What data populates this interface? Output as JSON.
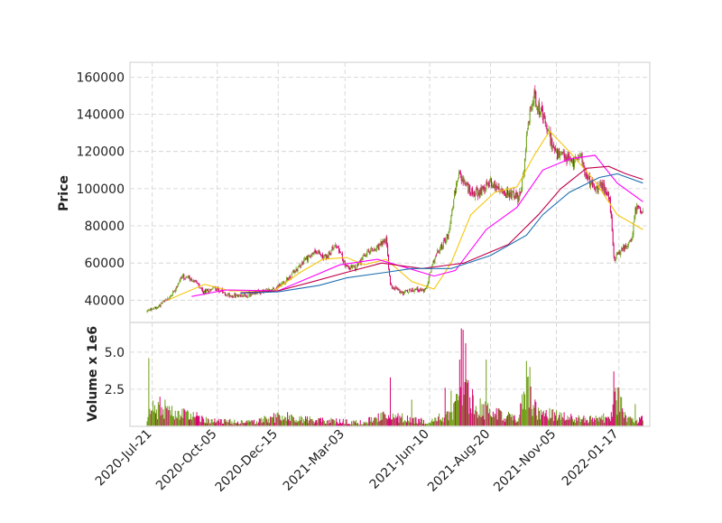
{
  "chart_data": {
    "type": "candlestick",
    "panels": {
      "price": {
        "ylabel": "Price",
        "ylim": [
          28000,
          168000
        ],
        "yticks": [
          40000,
          60000,
          80000,
          100000,
          120000,
          140000,
          160000
        ],
        "ytick_labels": [
          "40000",
          "60000",
          "80000",
          "100000",
          "120000",
          "140000",
          "160000"
        ]
      },
      "volume": {
        "ylabel": "Volume x 1e6",
        "ylim": [
          0,
          7.0
        ],
        "yticks": [
          2.5,
          5.0
        ],
        "ytick_labels": [
          "2.5",
          "5.0"
        ]
      }
    },
    "x": {
      "start": "2020-07-15",
      "end": "2022-02-14",
      "xlim": [
        "2020-06-25",
        "2022-02-22"
      ],
      "ticks": [
        "2020-07-21",
        "2020-10-05",
        "2020-12-15",
        "2021-03-03",
        "2021-06-10",
        "2021-08-20",
        "2021-11-05",
        "2022-01-17"
      ],
      "tick_labels": [
        "2020-Jul-21",
        "2020-Oct-05",
        "2020-Dec-15",
        "2021-Mar-03",
        "2021-Jun-10",
        "2021-Aug-20",
        "2021-Nov-05",
        "2022-01-17"
      ]
    },
    "close_keypoints": [
      [
        "2020-07-15",
        34000
      ],
      [
        "2020-07-28",
        37000
      ],
      [
        "2020-08-10",
        41000
      ],
      [
        "2020-08-25",
        53000
      ],
      [
        "2020-09-08",
        51000
      ],
      [
        "2020-09-18",
        44000
      ],
      [
        "2020-10-02",
        47000
      ],
      [
        "2020-10-15",
        43000
      ],
      [
        "2020-11-01",
        42000
      ],
      [
        "2020-11-20",
        44000
      ],
      [
        "2020-12-10",
        46000
      ],
      [
        "2020-12-28",
        52000
      ],
      [
        "2021-01-15",
        62000
      ],
      [
        "2021-01-28",
        66000
      ],
      [
        "2021-02-10",
        63000
      ],
      [
        "2021-02-20",
        70000
      ],
      [
        "2021-03-05",
        58000
      ],
      [
        "2021-03-15",
        57000
      ],
      [
        "2021-03-28",
        65000
      ],
      [
        "2021-04-10",
        68000
      ],
      [
        "2021-04-20",
        73000
      ],
      [
        "2021-04-25",
        48000
      ],
      [
        "2021-05-10",
        44000
      ],
      [
        "2021-05-25",
        46000
      ],
      [
        "2021-06-05",
        45000
      ],
      [
        "2021-06-15",
        62000
      ],
      [
        "2021-06-25",
        70000
      ],
      [
        "2021-07-02",
        76000
      ],
      [
        "2021-07-08",
        95000
      ],
      [
        "2021-07-15",
        108000
      ],
      [
        "2021-07-25",
        100000
      ],
      [
        "2021-08-05",
        97000
      ],
      [
        "2021-08-20",
        104000
      ],
      [
        "2021-09-01",
        98000
      ],
      [
        "2021-09-12",
        97000
      ],
      [
        "2021-09-22",
        95000
      ],
      [
        "2021-09-28",
        108000
      ],
      [
        "2021-10-01",
        132000
      ],
      [
        "2021-10-10",
        150000
      ],
      [
        "2021-10-20",
        138000
      ],
      [
        "2021-10-28",
        128000
      ],
      [
        "2021-11-05",
        118000
      ],
      [
        "2021-11-18",
        116000
      ],
      [
        "2021-11-25",
        114000
      ],
      [
        "2021-12-02",
        120000
      ],
      [
        "2021-12-10",
        106000
      ],
      [
        "2021-12-20",
        100000
      ],
      [
        "2021-12-30",
        101000
      ],
      [
        "2022-01-06",
        96000
      ],
      [
        "2022-01-11",
        62000
      ],
      [
        "2022-01-20",
        67000
      ],
      [
        "2022-01-28",
        70000
      ],
      [
        "2022-02-01",
        73000
      ],
      [
        "2022-02-05",
        90000
      ],
      [
        "2022-02-14",
        89000
      ]
    ],
    "moving_averages": [
      {
        "color": "#f4c70a",
        "points": [
          [
            "2020-08-08",
            40000
          ],
          [
            "2020-09-20",
            48500
          ],
          [
            "2020-10-20",
            45000
          ],
          [
            "2020-12-10",
            45000
          ],
          [
            "2021-01-10",
            55000
          ],
          [
            "2021-02-05",
            62000
          ],
          [
            "2021-03-05",
            63000
          ],
          [
            "2021-03-25",
            59000
          ],
          [
            "2021-04-20",
            62000
          ],
          [
            "2021-05-20",
            50000
          ],
          [
            "2021-06-15",
            46000
          ],
          [
            "2021-07-05",
            60000
          ],
          [
            "2021-07-28",
            86000
          ],
          [
            "2021-08-25",
            98000
          ],
          [
            "2021-09-20",
            101000
          ],
          [
            "2021-10-10",
            118000
          ],
          [
            "2021-10-28",
            131000
          ],
          [
            "2021-11-20",
            120000
          ],
          [
            "2021-12-20",
            104000
          ],
          [
            "2022-01-15",
            86000
          ],
          [
            "2022-02-14",
            78000
          ]
        ]
      },
      {
        "color": "#ff00ff",
        "points": [
          [
            "2020-09-05",
            42000
          ],
          [
            "2020-10-15",
            45500
          ],
          [
            "2020-12-15",
            45000
          ],
          [
            "2021-01-20",
            52000
          ],
          [
            "2021-02-25",
            59000
          ],
          [
            "2021-04-10",
            62000
          ],
          [
            "2021-05-10",
            58000
          ],
          [
            "2021-06-15",
            53000
          ],
          [
            "2021-07-10",
            56000
          ],
          [
            "2021-08-15",
            78000
          ],
          [
            "2021-09-20",
            90000
          ],
          [
            "2021-10-20",
            110000
          ],
          [
            "2021-11-20",
            116000
          ],
          [
            "2021-12-20",
            118000
          ],
          [
            "2022-01-15",
            103000
          ],
          [
            "2022-02-14",
            93000
          ]
        ]
      },
      {
        "color": "#c1004a",
        "points": [
          [
            "2020-11-01",
            44000
          ],
          [
            "2020-12-15",
            45000
          ],
          [
            "2021-01-25",
            50000
          ],
          [
            "2021-03-05",
            55000
          ],
          [
            "2021-04-15",
            60000
          ],
          [
            "2021-06-01",
            57000
          ],
          [
            "2021-07-20",
            60000
          ],
          [
            "2021-09-10",
            70000
          ],
          [
            "2021-10-15",
            86000
          ],
          [
            "2021-11-10",
            100000
          ],
          [
            "2021-12-10",
            111000
          ],
          [
            "2022-01-05",
            112000
          ],
          [
            "2022-01-25",
            108000
          ],
          [
            "2022-02-14",
            105000
          ]
        ]
      },
      {
        "color": "#1f6fb2",
        "points": [
          [
            "2020-11-01",
            43800
          ],
          [
            "2020-12-15",
            44500
          ],
          [
            "2021-02-01",
            48000
          ],
          [
            "2021-03-05",
            52000
          ],
          [
            "2021-04-20",
            55000
          ],
          [
            "2021-05-20",
            57000
          ],
          [
            "2021-07-05",
            57000
          ],
          [
            "2021-08-20",
            64000
          ],
          [
            "2021-10-01",
            75000
          ],
          [
            "2021-10-20",
            86000
          ],
          [
            "2021-11-20",
            98000
          ],
          [
            "2021-12-25",
            106000
          ],
          [
            "2022-01-15",
            108000
          ],
          [
            "2022-02-14",
            103000
          ]
        ]
      }
    ],
    "volume_keypoints": [
      [
        "2020-07-15",
        0.3
      ],
      [
        "2020-07-21",
        1.5
      ],
      [
        "2020-08-10",
        1.0
      ],
      [
        "2020-09-01",
        0.8
      ],
      [
        "2020-10-01",
        0.4
      ],
      [
        "2020-11-15",
        0.3
      ],
      [
        "2020-12-20",
        0.8
      ],
      [
        "2021-01-10",
        0.5
      ],
      [
        "2021-02-15",
        0.4
      ],
      [
        "2021-03-20",
        0.3
      ],
      [
        "2021-04-20",
        0.8
      ],
      [
        "2021-05-10",
        0.6
      ],
      [
        "2021-06-10",
        0.3
      ],
      [
        "2021-07-05",
        1.0
      ],
      [
        "2021-07-20",
        2.5
      ],
      [
        "2021-08-05",
        1.5
      ],
      [
        "2021-08-25",
        1.0
      ],
      [
        "2021-09-20",
        0.6
      ],
      [
        "2021-10-02",
        2.5
      ],
      [
        "2021-10-15",
        1.0
      ],
      [
        "2021-11-20",
        0.6
      ],
      [
        "2021-12-20",
        0.5
      ],
      [
        "2022-01-08",
        0.7
      ],
      [
        "2022-01-13",
        2.5
      ],
      [
        "2022-01-25",
        0.6
      ],
      [
        "2022-02-14",
        0.5
      ]
    ],
    "volume_spikes": [
      [
        "2020-07-17",
        4.6
      ],
      [
        "2020-07-30",
        2.0
      ],
      [
        "2020-08-05",
        1.8
      ],
      [
        "2021-04-25",
        3.3
      ],
      [
        "2021-05-20",
        1.8
      ],
      [
        "2021-06-28",
        2.6
      ],
      [
        "2021-07-05",
        2.4
      ],
      [
        "2021-07-15",
        4.5
      ],
      [
        "2021-07-17",
        6.6
      ],
      [
        "2021-07-19",
        6.5
      ],
      [
        "2021-07-22",
        5.6
      ],
      [
        "2021-07-30",
        2.5
      ],
      [
        "2021-08-15",
        4.5
      ],
      [
        "2021-10-01",
        4.4
      ],
      [
        "2021-10-05",
        4.0
      ],
      [
        "2022-01-11",
        3.7
      ],
      [
        "2022-01-13",
        2.6
      ],
      [
        "2022-02-05",
        1.5
      ]
    ],
    "colors": {
      "up": "#6f9e16",
      "down": "#d6006e"
    }
  }
}
